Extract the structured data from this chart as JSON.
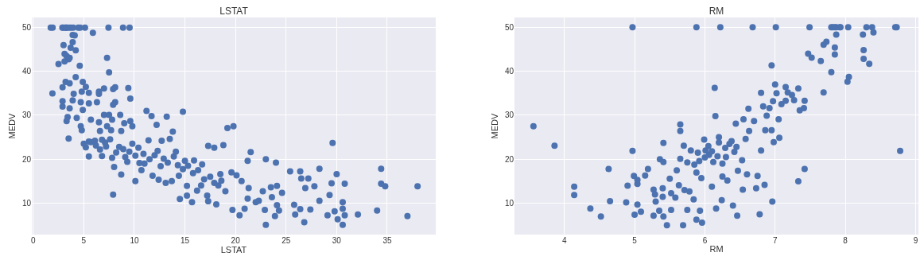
{
  "chart_data": [
    {
      "type": "scatter",
      "title": "LSTAT",
      "xlabel": "LSTAT",
      "ylabel": "MEDV",
      "xlim": [
        -0.14,
        39.8
      ],
      "xticks": [
        0,
        5,
        10,
        15,
        20,
        25,
        30,
        35
      ],
      "ylim": [
        2.8,
        52.3
      ],
      "yticks": [
        10,
        20,
        30,
        40,
        50
      ],
      "grid": true,
      "marker": "circle",
      "series": [
        {
          "color": "#4c72b0",
          "x": [
            1.73,
            1.92,
            2.88,
            2.96,
            3.16,
            3.26,
            3.32,
            3.53,
            3.73,
            3.95,
            4.45,
            4.63,
            5.12,
            7.44,
            8.88,
            9.53,
            5.9,
            3.9,
            4.1,
            3.0,
            3.9,
            3.7,
            4.2,
            3.1,
            3.3,
            3.6,
            3.5,
            7.3,
            2.5,
            3.1,
            4.6,
            7.5,
            4.2,
            2.9,
            1.9,
            3.2,
            3.6,
            4.9,
            5.2,
            7.0,
            7.9,
            8.1,
            9.4,
            9.6,
            3.9,
            2.9,
            4.0,
            4.8,
            5.5,
            6.5,
            6.5,
            4.7,
            5.5,
            6.3,
            8.1,
            7.9,
            2.9,
            3.6,
            3.4,
            3.3,
            4.3,
            4.9,
            5.7,
            6.5,
            7.0,
            7.5,
            8.6,
            7.8,
            9.0,
            9.6,
            3.5,
            4.7,
            4.8,
            6.6,
            7.3,
            7.7,
            8.7,
            9.8,
            5.2,
            5.5,
            6.8,
            7.8,
            8.0,
            7.9,
            8.7,
            5.5,
            6.2,
            6.8,
            7.2,
            8.5,
            9.5,
            10.1,
            9.3,
            10.5,
            10.1,
            10.7,
            11.4,
            11.2,
            11.7,
            12.2,
            13.2,
            14.8,
            13.8,
            12.7,
            13.5,
            12.0,
            11.8,
            12.4,
            13.1,
            13.7,
            14.4,
            14.5,
            15.2,
            15.7,
            15.2,
            15.9,
            16.7,
            16.6,
            17.2,
            17.3,
            18.1,
            17.3,
            17.9,
            18.8,
            19.2,
            19.8,
            18.5,
            19.6,
            20.1,
            19.7,
            20.4,
            20.9,
            21.5,
            21.2,
            22.3,
            23.0,
            24.0,
            22.9,
            23.0,
            23.9,
            24.3,
            24.6,
            25.4,
            26.4,
            26.5,
            25.8,
            25.9,
            26.4,
            26.8,
            26.9,
            27.2,
            27.4,
            27.8,
            28.3,
            28.3,
            29.1,
            29.3,
            29.6,
            29.5,
            29.8,
            30.0,
            30.1,
            30.6,
            30.6,
            30.6,
            30.8,
            30.8,
            32.1,
            34.0,
            34.4,
            34.4,
            34.8,
            37.0,
            38.0,
            21.2,
            22.0,
            22.7,
            23.5,
            23.6,
            24.1,
            24.1,
            21.3,
            20.6,
            19.0,
            18.3,
            16.2,
            5.0,
            5.7,
            6.1,
            6.6,
            7.1,
            7.6,
            8.2,
            8.9,
            9.1,
            9.8,
            10.4,
            10.9,
            11.5,
            12.3,
            12.9,
            13.3,
            13.9,
            14.3,
            14.8,
            15.3,
            15.8,
            16.3,
            16.9,
            17.5,
            17.9,
            18.6,
            14.1,
            15.0,
            12.6,
            11.0
          ],
          "values": [
            50,
            50,
            50,
            50,
            50,
            50,
            50,
            50,
            50,
            50,
            50,
            50,
            50,
            50,
            50,
            50,
            48.8,
            48.3,
            48.2,
            46.0,
            46.7,
            45.4,
            44.8,
            44.0,
            43.5,
            43.1,
            42.8,
            43.1,
            41.7,
            42.3,
            41.3,
            39.8,
            38.7,
            36.4,
            35.0,
            37.6,
            37.3,
            37.6,
            36.5,
            36.1,
            36.0,
            36.4,
            36.2,
            33.8,
            33.4,
            33.2,
            34.9,
            35.4,
            35.1,
            34.9,
            35.4,
            33.0,
            32.7,
            33.0,
            33.0,
            32.4,
            32.0,
            31.6,
            29.6,
            28.7,
            29.4,
            31.2,
            29.0,
            28.4,
            30.1,
            30.1,
            30.1,
            29.0,
            28.2,
            28.7,
            24.7,
            27.5,
            26.6,
            26.4,
            27.5,
            26.6,
            26.4,
            27.5,
            22.7,
            20.6,
            20.7,
            20.3,
            18.2,
            11.9,
            16.5,
            24.0,
            23.1,
            24.4,
            22.9,
            22.8,
            21.7,
            20.8,
            19.4,
            19.1,
            15.0,
            17.5,
            24.3,
            31.0,
            29.8,
            27.8,
            29.7,
            30.8,
            26.3,
            24.2,
            24.6,
            20.9,
            16.2,
            15.3,
            14.6,
            15.0,
            16.2,
            10.9,
            11.7,
            10.2,
            13.9,
            19.7,
            18.8,
            14.0,
            11.7,
            10.4,
            9.7,
            23.0,
            22.6,
            23.2,
            27.1,
            27.5,
            16.6,
            17.0,
            16.3,
            8.4,
            7.2,
            8.7,
            21.6,
            19.6,
            10.5,
            20.0,
            19.2,
            8.4,
            5.0,
            7.0,
            8.3,
            12.3,
            17.2,
            17.2,
            15.6,
            9.6,
            7.4,
            8.6,
            5.6,
            13.4,
            15.6,
            8.5,
            13.8,
            17.8,
            10.5,
            7.2,
            11.8,
            23.7,
            14.5,
            8.1,
            16.6,
            6.3,
            10.2,
            8.7,
            5.0,
            14.4,
            7.2,
            7.4,
            8.3,
            17.8,
            14.4,
            13.8,
            7.0,
            13.8,
            11.0,
            10.2,
            12.7,
            13.6,
            11.3,
            13.9,
            9.5,
            13.4,
            15.0,
            12.7,
            14.0,
            12.8,
            23.5,
            23.9,
            24.2,
            22.2,
            23.8,
            24.5,
            21.5,
            22.3,
            20.5,
            23.5,
            22.6,
            21.2,
            20.0,
            21.9,
            20.1,
            19.2,
            20.6,
            18.6,
            17.7,
            18.5,
            16.8,
            17.5,
            15.4,
            16.0,
            14.6,
            15.1,
            21.7,
            19.6,
            18.4,
            19.0
          ]
        }
      ]
    },
    {
      "type": "scatter",
      "title": "RM",
      "xlabel": "RM",
      "ylabel": "MEDV",
      "xlim": [
        3.29,
        9.04
      ],
      "xticks": [
        4,
        5,
        6,
        7,
        8,
        9
      ],
      "ylim": [
        2.9,
        52.2
      ],
      "yticks": [
        10,
        20,
        30,
        40,
        50
      ],
      "grid": true,
      "marker": "circle",
      "series": [
        {
          "color": "#4c72b0",
          "x": [
            4.97,
            5.88,
            6.22,
            6.68,
            7.01,
            7.49,
            7.8,
            7.82,
            7.85,
            7.87,
            7.92,
            7.93,
            8.04,
            8.3,
            8.38,
            8.71,
            8.73,
            3.56,
            3.86,
            4.14,
            4.14,
            4.37,
            4.52,
            4.63,
            4.65,
            4.88,
            4.9,
            4.97,
            4.99,
            5.0,
            5.04,
            5.04,
            5.04,
            5.09,
            5.15,
            5.19,
            5.27,
            5.27,
            5.29,
            5.3,
            5.35,
            5.36,
            5.41,
            5.4,
            5.4,
            5.41,
            5.41,
            5.46,
            5.5,
            5.52,
            5.52,
            5.58,
            5.6,
            5.63,
            5.65,
            5.65,
            5.65,
            5.7,
            5.69,
            5.71,
            5.75,
            5.78,
            5.84,
            5.88,
            5.93,
            5.96,
            5.95,
            5.88,
            5.8,
            5.85,
            5.92,
            6.0,
            6.01,
            5.99,
            6.06,
            6.1,
            6.12,
            6.14,
            6.15,
            6.16,
            6.18,
            6.2,
            6.24,
            6.25,
            6.29,
            6.32,
            6.38,
            6.4,
            6.42,
            6.44,
            6.46,
            6.47,
            6.53,
            6.54,
            6.55,
            6.58,
            6.6,
            6.62,
            6.63,
            6.7,
            6.73,
            6.75,
            6.8,
            6.78,
            6.83,
            6.85,
            6.8,
            6.86,
            6.88,
            6.92,
            6.95,
            6.96,
            6.97,
            6.98,
            7.0,
            7.02,
            7.06,
            7.05,
            7.09,
            7.15,
            7.15,
            7.18,
            7.24,
            7.27,
            7.33,
            7.35,
            7.41,
            7.42,
            7.33,
            7.42,
            6.95,
            7.47,
            7.52,
            7.65,
            7.69,
            7.73,
            7.8,
            7.69,
            7.85,
            7.85,
            7.87,
            8.03,
            8.05,
            8.25,
            8.26,
            8.26,
            8.34,
            8.4,
            8.78,
            6.2,
            6.05,
            6.3,
            5.9,
            6.35,
            6.1,
            5.75,
            6.45,
            6.25
          ],
          "values": [
            50,
            50,
            50,
            50,
            50,
            50,
            50,
            50,
            50,
            50,
            50,
            50,
            50,
            50,
            50,
            50,
            50,
            27.5,
            23.1,
            13.8,
            11.9,
            8.8,
            7.0,
            17.8,
            10.5,
            10.2,
            14.0,
            21.9,
            16.2,
            7.4,
            14.4,
            15.3,
            9.7,
            8.1,
            16.3,
            17.8,
            7.2,
            13.1,
            12.0,
            10.4,
            8.3,
            20.0,
            19.4,
            13.4,
            11.5,
            7.0,
            23.7,
            5.0,
            15.6,
            8.5,
            12.3,
            11.3,
            17.5,
            14.1,
            27.9,
            26.4,
            20.1,
            23.1,
            5.0,
            13.0,
            8.5,
            12.7,
            10.9,
            6.3,
            8.3,
            5.6,
            15.7,
            17.0,
            22.0,
            18.8,
            19.6,
            20.4,
            22.0,
            24.5,
            21.0,
            13.8,
            19.4,
            36.2,
            29.8,
            8.8,
            20.7,
            25.0,
            10.7,
            16.1,
            22.6,
            15.2,
            24.1,
            9.5,
            21.7,
            28.1,
            7.2,
            17.4,
            19.8,
            13.1,
            29.1,
            24.6,
            16.6,
            31.5,
            26.4,
            28.7,
            13.4,
            16.2,
            22.0,
            7.5,
            32.0,
            14.2,
            35.1,
            26.6,
            29.9,
            31.6,
            26.6,
            10.4,
            33.2,
            23.9,
            37.0,
            35.0,
            24.9,
            29.1,
            32.5,
            36.4,
            33.3,
            35.2,
            34.6,
            33.4,
            36.1,
            31.1,
            31.6,
            17.8,
            15.0,
            33.3,
            41.3,
            44.0,
            43.1,
            42.3,
            46.0,
            46.7,
            39.8,
            35.2,
            45.4,
            43.8,
            48.3,
            37.6,
            38.7,
            48.3,
            44.8,
            42.8,
            41.7,
            48.8,
            21.9,
            23.8,
            23.0,
            20.5,
            21.5,
            23.5,
            21.8,
            19.3,
            22.8,
            19.0
          ]
        }
      ]
    }
  ]
}
